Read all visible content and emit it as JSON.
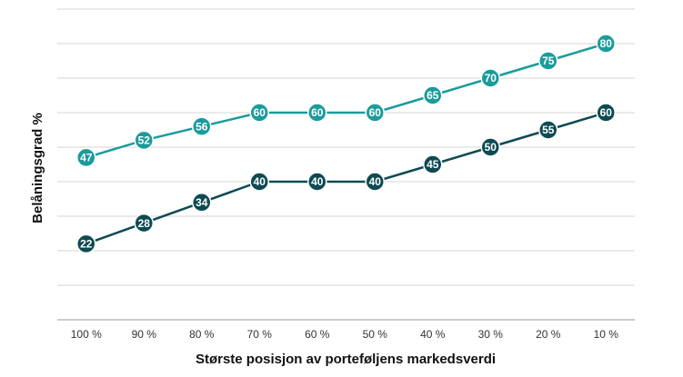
{
  "chart_data": {
    "type": "line",
    "x_label": "Største posisjon av porteføljens markedsverdi",
    "y_label": "Belåningsgrad %",
    "categories": [
      "100 %",
      "90 %",
      "80 %",
      "70 %",
      "60 %",
      "50 %",
      "40 %",
      "30 %",
      "20 %",
      "10 %"
    ],
    "series": [
      {
        "color": "#1b9b9b",
        "values": [
          47,
          52,
          56,
          60,
          60,
          60,
          65,
          70,
          75,
          80
        ]
      },
      {
        "color": "#0e4a52",
        "values": [
          22,
          28,
          34,
          40,
          40,
          40,
          45,
          50,
          55,
          60
        ]
      }
    ],
    "ylim": [
      0,
      90
    ],
    "yticks": [
      0,
      10,
      20,
      30,
      40,
      50,
      60,
      70,
      80,
      90
    ],
    "grid": true
  }
}
